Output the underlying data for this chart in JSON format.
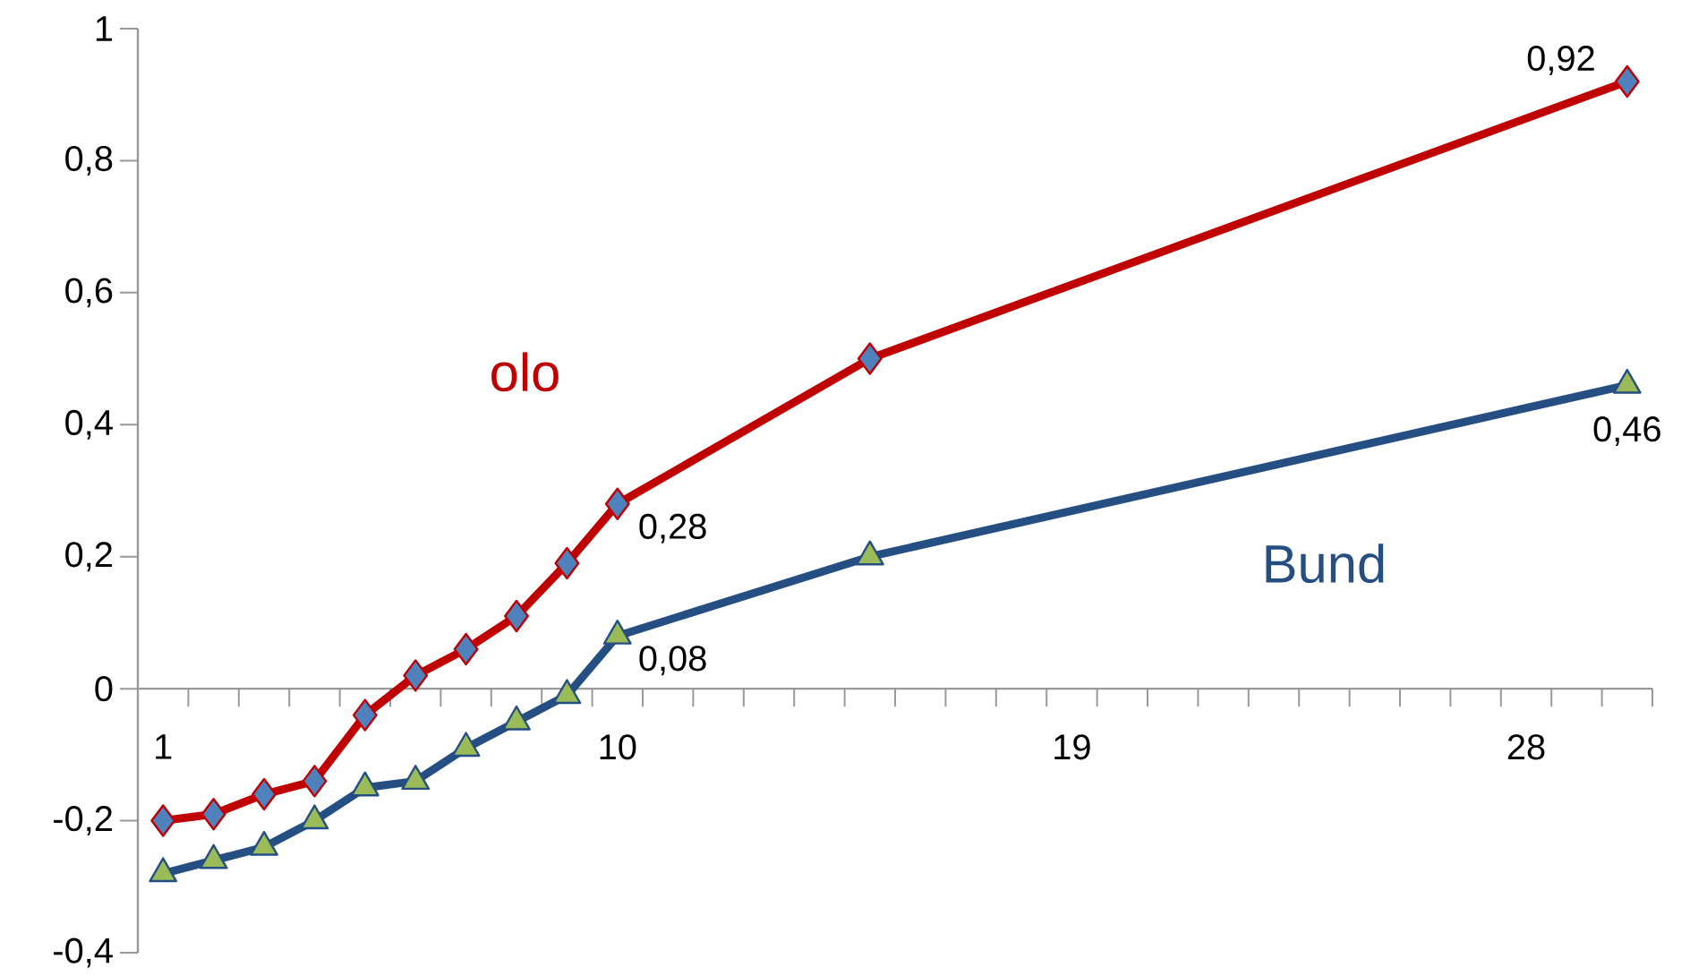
{
  "chart_data": {
    "type": "line",
    "x": [
      1,
      2,
      3,
      4,
      5,
      6,
      7,
      8,
      9,
      10,
      15,
      30
    ],
    "series": [
      {
        "name": "olo",
        "color": "#c00000",
        "marker": "diamond",
        "values": [
          -0.2,
          -0.19,
          -0.16,
          -0.14,
          -0.04,
          0.02,
          0.06,
          0.11,
          0.19,
          0.28,
          0.5,
          0.92
        ],
        "value_labels": [
          null,
          null,
          null,
          null,
          null,
          null,
          null,
          null,
          null,
          "0,28",
          null,
          "0,92"
        ]
      },
      {
        "name": "Bund",
        "color": "#254f83",
        "marker": "triangle",
        "values": [
          -0.28,
          -0.26,
          -0.24,
          -0.2,
          -0.15,
          -0.14,
          -0.09,
          -0.05,
          -0.01,
          0.08,
          0.2,
          0.46
        ],
        "value_labels": [
          null,
          null,
          null,
          null,
          null,
          null,
          null,
          null,
          null,
          "0,08",
          null,
          "0,46"
        ]
      }
    ],
    "xlim": [
      0.5,
      30.5
    ],
    "xticks": [
      {
        "value": 0.5,
        "label": null
      },
      1,
      {
        "value": 1.5,
        "label": null
      },
      {
        "value": 2.5,
        "label": null
      },
      {
        "value": 3.5,
        "label": null
      },
      {
        "value": 4.5,
        "label": null
      },
      {
        "value": 5.5,
        "label": null
      },
      {
        "value": 6.5,
        "label": null
      },
      {
        "value": 7.5,
        "label": null
      },
      {
        "value": 8.5,
        "label": null
      },
      {
        "value": 9.5,
        "label": null
      },
      10,
      {
        "value": 10.5,
        "label": null
      },
      {
        "value": 11.5,
        "label": null
      },
      {
        "value": 12.5,
        "label": null
      },
      {
        "value": 13.5,
        "label": null
      },
      {
        "value": 14.5,
        "label": null
      },
      {
        "value": 15.5,
        "label": null
      },
      {
        "value": 16.5,
        "label": null
      },
      {
        "value": 17.5,
        "label": null
      },
      {
        "value": 18.5,
        "label": null
      },
      19,
      {
        "value": 19.5,
        "label": null
      },
      {
        "value": 20.5,
        "label": null
      },
      {
        "value": 21.5,
        "label": null
      },
      {
        "value": 22.5,
        "label": null
      },
      {
        "value": 23.5,
        "label": null
      },
      {
        "value": 24.5,
        "label": null
      },
      {
        "value": 25.5,
        "label": null
      },
      {
        "value": 26.5,
        "label": null
      },
      {
        "value": 27.5,
        "label": null
      },
      28,
      {
        "value": 28.5,
        "label": null
      },
      {
        "value": 29.5,
        "label": null
      },
      {
        "value": 30.5,
        "label": null
      }
    ],
    "ylim": [
      -0.4,
      1
    ],
    "yticks": [
      {
        "value": -0.4,
        "label": "-0,4"
      },
      {
        "value": -0.2,
        "label": "-0,2"
      },
      0,
      {
        "value": 0.2,
        "label": "0,2"
      },
      {
        "value": 0.4,
        "label": "0,4"
      },
      {
        "value": 0.6,
        "label": "0,6"
      },
      {
        "value": 0.8,
        "label": "0,8"
      },
      1
    ],
    "grid": false,
    "legend": false
  }
}
